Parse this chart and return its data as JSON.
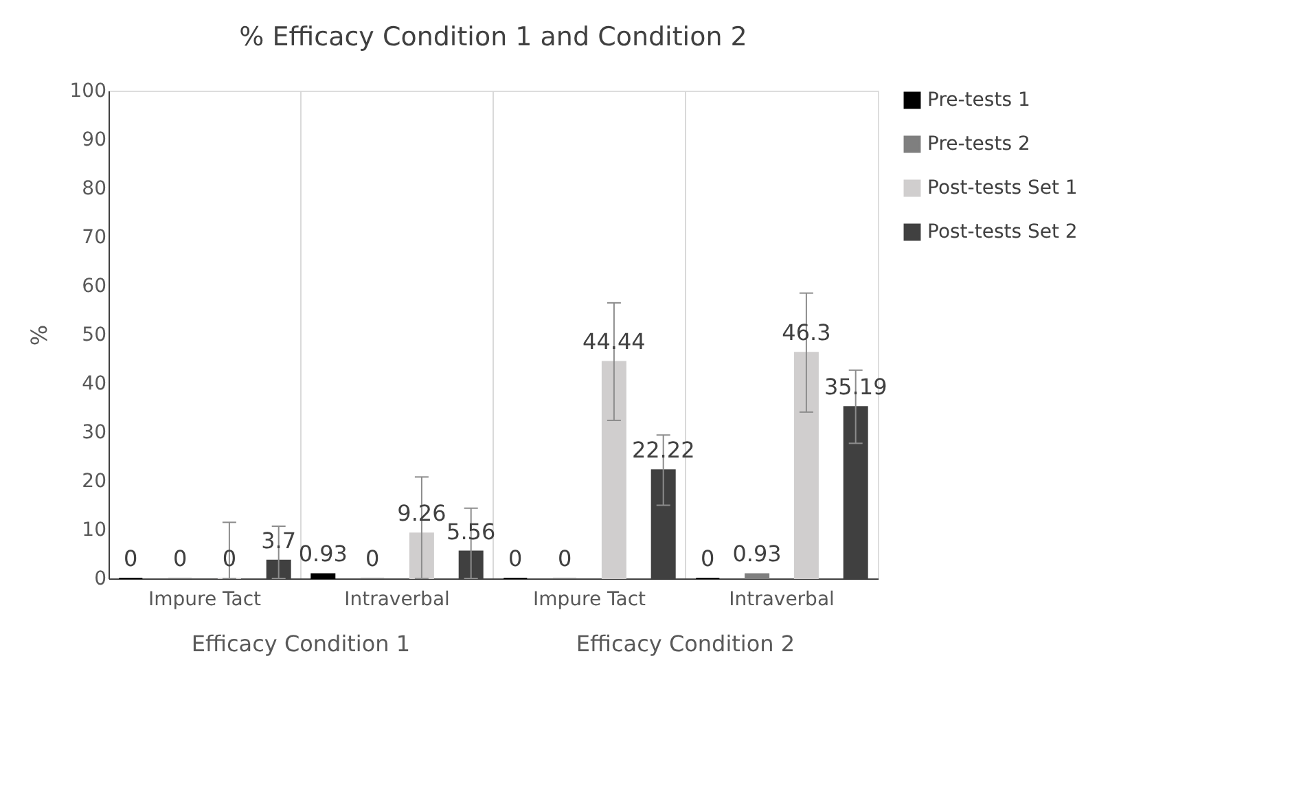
{
  "chart_data": {
    "type": "bar",
    "title": "% Efficacy Condition 1 and Condition 2",
    "ylabel": "%",
    "categories": [
      "Impure Tact",
      "Intraverbal",
      "Impure Tact",
      "Intraverbal"
    ],
    "annotations": [
      "Efficacy Condition 1",
      "Efficacy Condition 2"
    ],
    "series": [
      {
        "name": "Pre-tests 1",
        "color": "#000000",
        "values": [
          0,
          0.93,
          0,
          0
        ]
      },
      {
        "name": "Pre-tests 2",
        "color": "#7f7f7f",
        "values": [
          0,
          0,
          0,
          0.93
        ]
      },
      {
        "name": "Post-tests Set 1",
        "color": "#d0cece",
        "values": [
          0,
          9.26,
          44.44,
          46.3
        ],
        "errors": [
          [
            0,
            11.5
          ],
          [
            0,
            20.8
          ],
          [
            32.4,
            56.5
          ],
          [
            34.1,
            58.5
          ]
        ]
      },
      {
        "name": "Post-tests Set 2",
        "color": "#404040",
        "values": [
          3.7,
          5.56,
          22.22,
          35.19
        ],
        "errors": [
          [
            0,
            10.7
          ],
          [
            0,
            14.4
          ],
          [
            15,
            29.4
          ],
          [
            27.7,
            42.7
          ]
        ]
      }
    ],
    "ylim": [
      0,
      100
    ],
    "yticks": [
      0,
      10,
      20,
      30,
      40,
      50,
      60,
      70,
      80,
      90,
      100
    ],
    "grid": "x",
    "legend": "right",
    "data_labels": true
  }
}
